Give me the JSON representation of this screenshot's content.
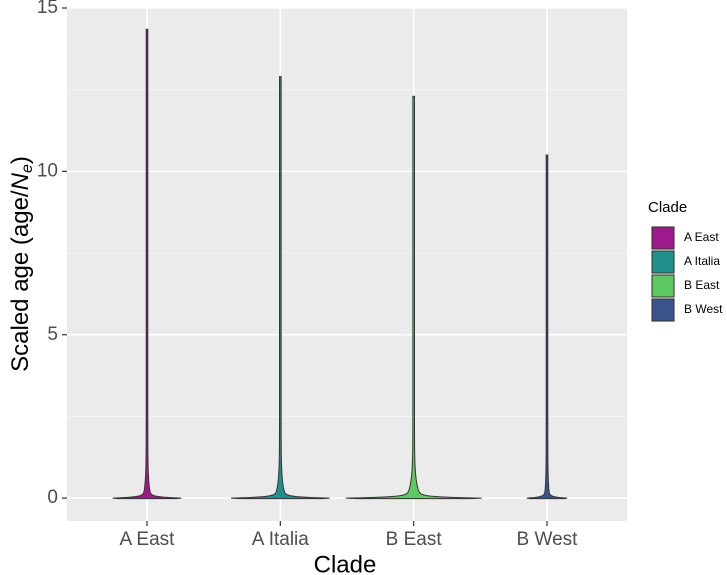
{
  "chart_data": {
    "type": "violin",
    "x_label": "Clade",
    "y_label": [
      "Scaled age (age/",
      "N",
      "e",
      ")"
    ],
    "categories": [
      "A East",
      "A Italia",
      "B East",
      "B West"
    ],
    "series": [
      {
        "name": "A East",
        "color": "#9c1a8a",
        "min": 0,
        "max": 14.35,
        "width": 0.45
      },
      {
        "name": "A Italia",
        "color": "#21908c",
        "min": 0,
        "max": 12.9,
        "width": 0.65
      },
      {
        "name": "B East",
        "color": "#5ec962",
        "min": 0,
        "max": 12.3,
        "width": 0.9
      },
      {
        "name": "B West",
        "color": "#3b528b",
        "min": 0,
        "max": 10.5,
        "width": 0.26
      }
    ],
    "ylim": [
      -0.7,
      15
    ],
    "yticks": [
      0,
      5,
      10,
      15
    ],
    "y_minor_grid": [
      2.5,
      7.5,
      12.5
    ],
    "grid": true,
    "legend_title": "Clade",
    "legend": "right"
  }
}
